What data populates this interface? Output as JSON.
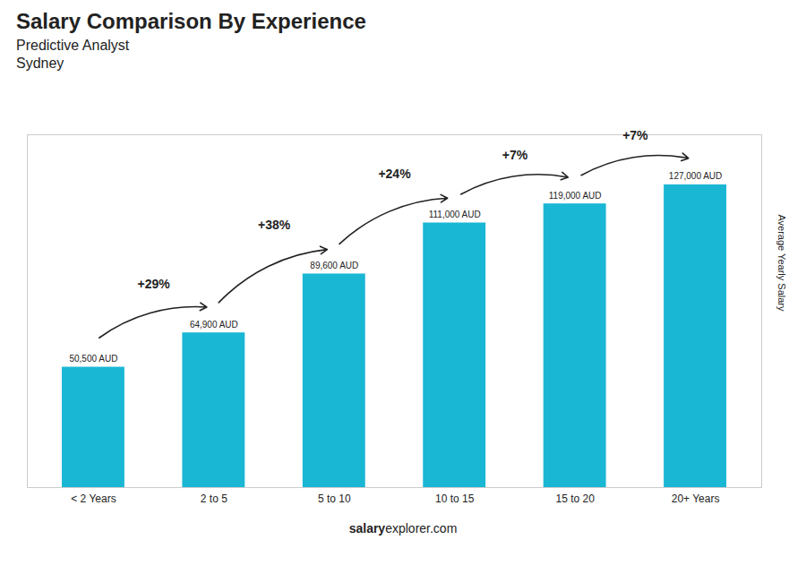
{
  "chart_data": {
    "type": "bar",
    "title": "Salary Comparison By Experience",
    "subtitle": "Predictive Analyst",
    "city": "Sydney",
    "categories": [
      "< 2 Years",
      "2 to 5",
      "5 to 10",
      "10 to 15",
      "15 to 20",
      "20+ Years"
    ],
    "values": [
      50500,
      64900,
      89600,
      111000,
      119000,
      127000
    ],
    "value_labels": [
      "50,500 AUD",
      "64,900 AUD",
      "89,600 AUD",
      "111,000 AUD",
      "119,000 AUD",
      "127,000 AUD"
    ],
    "data_labels": true,
    "annotations": [
      "+29%",
      "+38%",
      "+24%",
      "+7%",
      "+7%"
    ],
    "ylabel": "Average Yearly Salary",
    "footer": [
      "salary",
      "explorer.com"
    ],
    "color": "#1ab7d4",
    "ylim": [
      0,
      148000
    ],
    "tick_labels": "x",
    "grid": false
  }
}
